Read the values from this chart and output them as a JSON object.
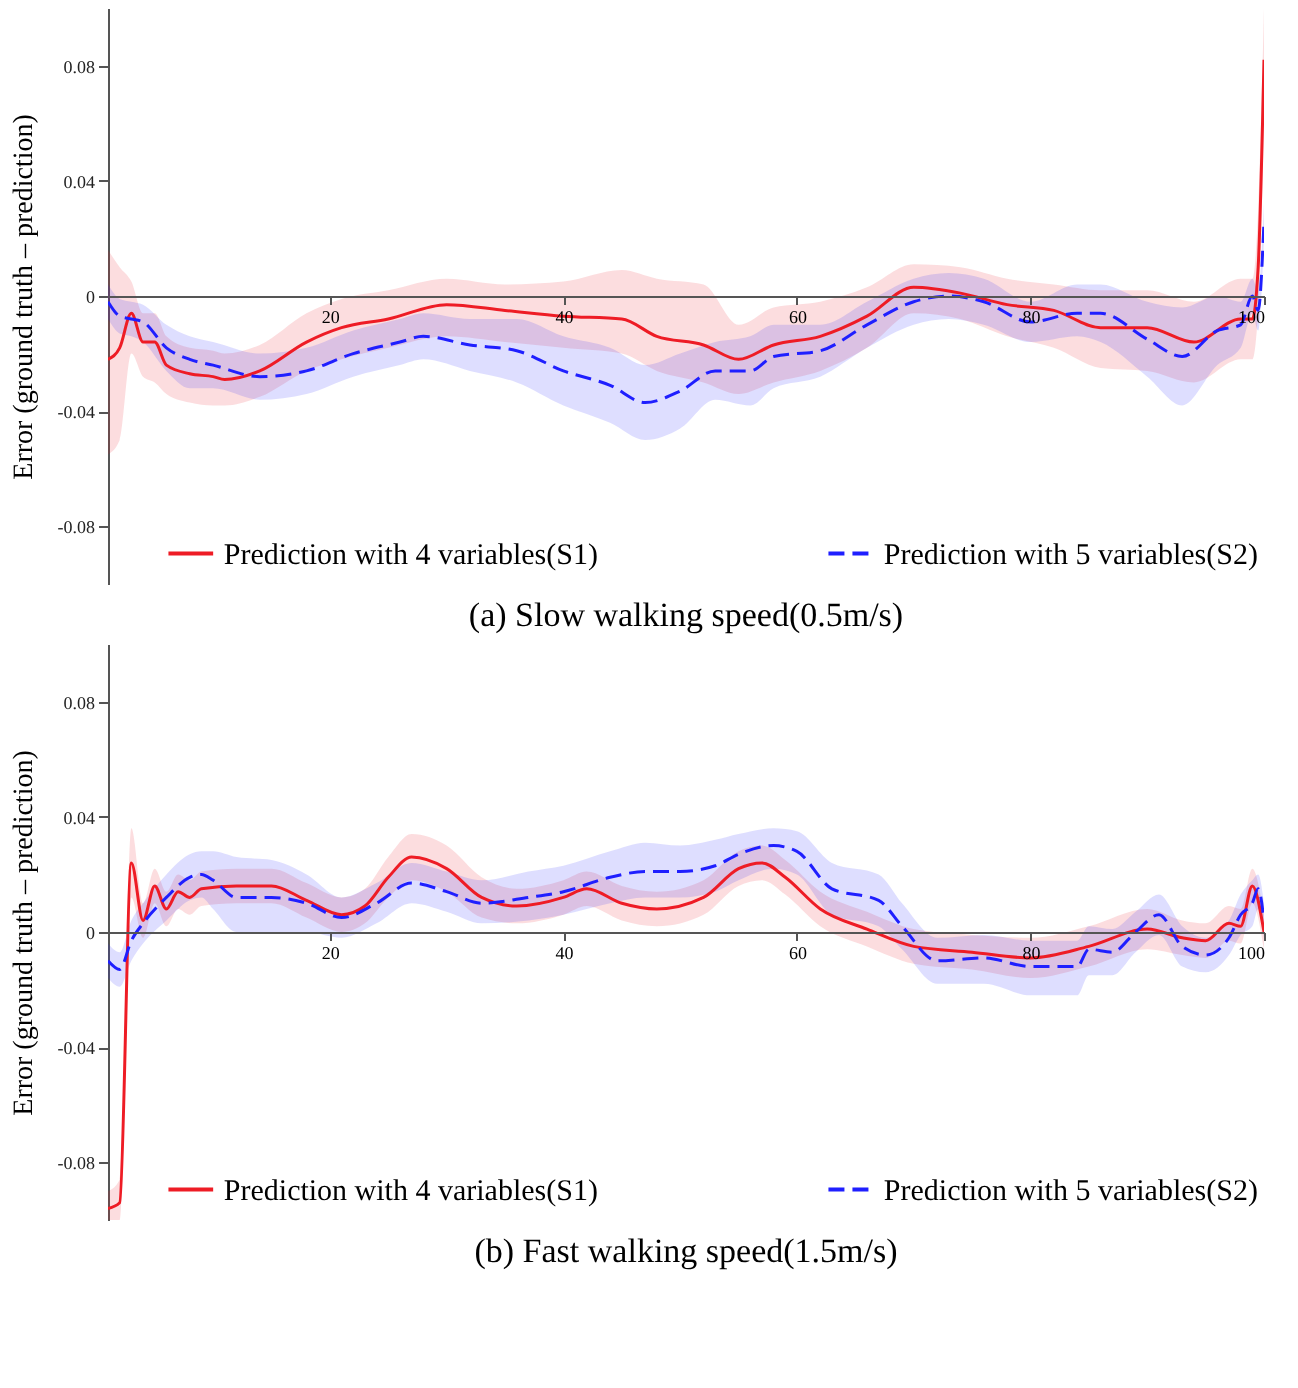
{
  "chart_data": [
    {
      "type": "line",
      "title": "(a) Slow walking speed(0.5m/s)",
      "ylabel": "Error (ground truth – prediction)",
      "xlim": [
        1,
        100
      ],
      "xticks": [
        20,
        40,
        60,
        80,
        100
      ],
      "ylim": [
        -0.1,
        0.1
      ],
      "yticks": [
        -0.08,
        -0.04,
        0,
        0.04,
        0.08
      ],
      "legend": "bottom",
      "series": [
        {
          "name": "Prediction with 4 variables(S1)",
          "color": "#ee1c25",
          "line_style": "solid",
          "x": [
            1,
            2,
            3,
            4,
            5,
            6,
            8,
            10,
            11,
            14,
            18,
            21,
            25,
            30,
            35,
            40,
            45,
            48,
            52,
            55,
            58,
            62,
            66,
            70,
            74,
            78,
            82,
            86,
            90,
            94,
            98,
            99,
            99.5,
            100
          ],
          "values": [
            -0.022,
            -0.018,
            -0.006,
            -0.016,
            -0.016,
            -0.024,
            -0.027,
            -0.028,
            -0.029,
            -0.026,
            -0.016,
            -0.011,
            -0.008,
            -0.003,
            -0.005,
            -0.007,
            -0.008,
            -0.014,
            -0.017,
            -0.022,
            -0.017,
            -0.014,
            -0.007,
            0.003,
            0.001,
            -0.003,
            -0.005,
            -0.011,
            -0.011,
            -0.016,
            -0.008,
            -0.008,
            0.01,
            0.082
          ],
          "lower": [
            -0.055,
            -0.05,
            -0.02,
            -0.028,
            -0.03,
            -0.034,
            -0.037,
            -0.038,
            -0.038,
            -0.035,
            -0.026,
            -0.022,
            -0.018,
            -0.014,
            -0.016,
            -0.018,
            -0.02,
            -0.026,
            -0.03,
            -0.034,
            -0.03,
            -0.026,
            -0.018,
            -0.006,
            -0.008,
            -0.014,
            -0.018,
            -0.025,
            -0.026,
            -0.03,
            -0.022,
            -0.022,
            -0.005,
            0.06
          ],
          "upper": [
            0.016,
            0.01,
            0.005,
            -0.006,
            -0.006,
            -0.014,
            -0.018,
            -0.019,
            -0.02,
            -0.017,
            -0.006,
            -0.001,
            0.002,
            0.006,
            0.004,
            0.005,
            0.009,
            0.006,
            0.004,
            -0.01,
            -0.004,
            -0.002,
            0.003,
            0.011,
            0.01,
            0.006,
            0.004,
            0.002,
            0.002,
            -0.002,
            0.006,
            0.006,
            0.03,
            0.1
          ]
        },
        {
          "name": "Prediction with 5 variables(S2)",
          "color": "#1f1fff",
          "line_style": "dashed",
          "x": [
            1,
            2,
            3,
            4,
            6,
            8,
            10,
            14,
            18,
            22,
            26,
            28,
            32,
            36,
            40,
            44,
            47,
            50,
            53,
            56,
            58,
            62,
            66,
            70,
            73,
            76,
            80,
            84,
            86,
            90,
            93,
            96,
            98,
            99,
            99.5,
            100
          ],
          "values": [
            -0.002,
            -0.007,
            -0.008,
            -0.009,
            -0.018,
            -0.022,
            -0.024,
            -0.028,
            -0.026,
            -0.02,
            -0.016,
            -0.014,
            -0.017,
            -0.019,
            -0.026,
            -0.031,
            -0.037,
            -0.033,
            -0.026,
            -0.026,
            -0.021,
            -0.019,
            -0.01,
            -0.002,
            0,
            -0.002,
            -0.009,
            -0.006,
            -0.006,
            -0.015,
            -0.021,
            -0.012,
            -0.01,
            0,
            -0.005,
            0.026
          ],
          "lower": [
            -0.008,
            -0.013,
            -0.014,
            -0.016,
            -0.026,
            -0.032,
            -0.032,
            -0.036,
            -0.034,
            -0.028,
            -0.024,
            -0.022,
            -0.026,
            -0.03,
            -0.038,
            -0.044,
            -0.05,
            -0.046,
            -0.036,
            -0.038,
            -0.032,
            -0.028,
            -0.018,
            -0.01,
            -0.008,
            -0.01,
            -0.016,
            -0.014,
            -0.016,
            -0.028,
            -0.038,
            -0.024,
            -0.018,
            -0.006,
            -0.012,
            0.02
          ],
          "upper": [
            0.004,
            -0.001,
            -0.002,
            -0.003,
            -0.01,
            -0.014,
            -0.016,
            -0.02,
            -0.018,
            -0.012,
            -0.008,
            -0.006,
            -0.008,
            -0.008,
            -0.014,
            -0.018,
            -0.024,
            -0.02,
            -0.016,
            -0.014,
            -0.01,
            -0.01,
            -0.002,
            0.006,
            0.008,
            0.006,
            -0.002,
            0.004,
            0.004,
            -0.002,
            -0.004,
            0,
            -0.002,
            0.006,
            0.002,
            0.032
          ]
        }
      ]
    },
    {
      "type": "line",
      "title": "(b) Fast walking speed(1.5m/s)",
      "ylabel": "Error (ground truth – prediction)",
      "xlim": [
        1,
        100
      ],
      "xticks": [
        20,
        40,
        60,
        80,
        100
      ],
      "ylim": [
        -0.1,
        0.1
      ],
      "yticks": [
        -0.08,
        -0.04,
        0,
        0.04,
        0.08
      ],
      "legend": "bottom",
      "series": [
        {
          "name": "Prediction with 4 variables(S1)",
          "color": "#ee1c25",
          "line_style": "solid",
          "x": [
            1,
            2,
            3,
            4,
            5,
            6,
            7,
            8,
            9,
            12,
            15,
            18,
            21,
            23,
            25,
            27,
            30,
            33,
            36,
            40,
            42,
            45,
            48,
            52,
            55,
            57,
            59,
            62,
            66,
            70,
            75,
            80,
            85,
            90,
            93,
            95,
            97,
            98,
            99,
            100
          ],
          "values": [
            -0.096,
            -0.094,
            0.024,
            0.004,
            0.016,
            0.008,
            0.014,
            0.012,
            0.015,
            0.016,
            0.016,
            0.011,
            0.006,
            0.009,
            0.019,
            0.026,
            0.022,
            0.012,
            0.009,
            0.012,
            0.015,
            0.01,
            0.008,
            0.012,
            0.022,
            0.024,
            0.019,
            0.008,
            0.001,
            -0.005,
            -0.007,
            -0.009,
            -0.005,
            0.001,
            -0.002,
            -0.003,
            0.003,
            0.002,
            0.016,
            0
          ],
          "lower": [
            -0.1,
            -0.1,
            0.012,
            -0.002,
            0.01,
            0.002,
            0.008,
            0.006,
            0.009,
            0.01,
            0.01,
            0.005,
            0,
            0.003,
            0.012,
            0.018,
            0.014,
            0.005,
            0.003,
            0.006,
            0.009,
            0.004,
            0.002,
            0.006,
            0.016,
            0.018,
            0.013,
            0.002,
            -0.005,
            -0.011,
            -0.013,
            -0.016,
            -0.012,
            -0.006,
            -0.008,
            -0.009,
            -0.003,
            -0.004,
            0.01,
            -0.006
          ],
          "upper": [
            -0.09,
            -0.086,
            0.036,
            0.01,
            0.022,
            0.014,
            0.02,
            0.018,
            0.021,
            0.022,
            0.022,
            0.017,
            0.012,
            0.015,
            0.026,
            0.034,
            0.03,
            0.019,
            0.015,
            0.018,
            0.021,
            0.016,
            0.014,
            0.018,
            0.028,
            0.03,
            0.025,
            0.014,
            0.007,
            0.001,
            -0.001,
            -0.002,
            0.002,
            0.008,
            0.004,
            0.003,
            0.009,
            0.008,
            0.022,
            0.006
          ]
        },
        {
          "name": "Prediction with 5 variables(S2)",
          "color": "#1f1fff",
          "line_style": "dashed",
          "x": [
            1,
            2,
            3,
            4,
            6,
            8,
            9,
            10,
            12,
            15,
            18,
            21,
            24,
            27,
            30,
            33,
            37,
            40,
            44,
            47,
            50,
            53,
            55,
            58,
            60,
            63,
            67,
            69,
            72,
            76,
            80,
            84,
            85,
            87,
            89,
            91,
            93,
            95,
            97,
            98,
            99,
            99.5,
            100
          ],
          "values": [
            -0.01,
            -0.013,
            -0.003,
            0.003,
            0.012,
            0.019,
            0.02,
            0.018,
            0.012,
            0.012,
            0.01,
            0.005,
            0.01,
            0.017,
            0.014,
            0.01,
            0.012,
            0.014,
            0.019,
            0.021,
            0.021,
            0.023,
            0.027,
            0.03,
            0.028,
            0.015,
            0.011,
            0.002,
            -0.01,
            -0.009,
            -0.012,
            -0.012,
            -0.006,
            -0.007,
            0,
            0.006,
            -0.005,
            -0.008,
            -0.002,
            0.006,
            0.01,
            0.015,
            0.004
          ],
          "lower": [
            -0.016,
            -0.019,
            -0.01,
            -0.004,
            0.004,
            0.011,
            0.012,
            0.008,
            0,
            0,
            0,
            -0.002,
            0.003,
            0.01,
            0.007,
            0.003,
            0.004,
            0.006,
            0.01,
            0.012,
            0.012,
            0.014,
            0.018,
            0.022,
            0.02,
            0.006,
            0.002,
            -0.006,
            -0.018,
            -0.018,
            -0.022,
            -0.022,
            -0.015,
            -0.015,
            -0.007,
            -0.001,
            -0.012,
            -0.014,
            -0.008,
            -0.001,
            0.002,
            0.008,
            -0.002
          ],
          "upper": [
            -0.004,
            -0.007,
            0.004,
            0.01,
            0.02,
            0.027,
            0.028,
            0.028,
            0.026,
            0.025,
            0.02,
            0.012,
            0.017,
            0.024,
            0.021,
            0.018,
            0.021,
            0.023,
            0.028,
            0.031,
            0.03,
            0.032,
            0.034,
            0.036,
            0.035,
            0.024,
            0.02,
            0.01,
            -0.002,
            -0.001,
            -0.003,
            -0.003,
            0.002,
            0.001,
            0.007,
            0.013,
            0.002,
            -0.002,
            0.004,
            0.013,
            0.018,
            0.02,
            0.01
          ]
        }
      ]
    }
  ]
}
